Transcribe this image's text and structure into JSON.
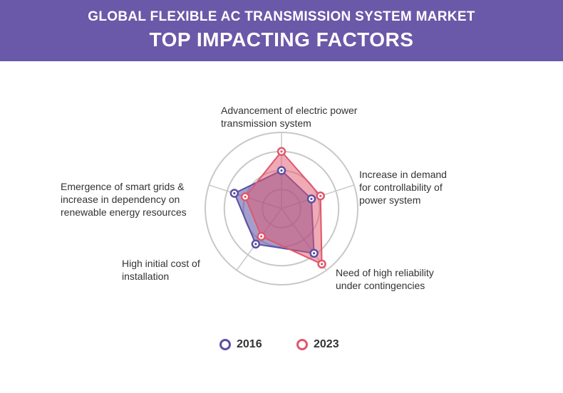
{
  "header": {
    "line1": "GLOBAL FLEXIBLE AC TRANSMISSION SYSTEM MARKET",
    "line2": "TOP IMPACTING FACTORS"
  },
  "colors": {
    "header_bg": "#6a58a8",
    "series_2016": "#5b4fa3",
    "series_2023": "#e0566c"
  },
  "chart_data": {
    "type": "radar",
    "axes": [
      "Advancement of electric power transmission system",
      "Increase in demand for controllability of power system",
      "Need of high reliability under contingencies",
      "High initial cost of installation",
      "Emergence of smart grids & increase in dependency on renewable energy resources"
    ],
    "axis_label_lines": [
      [
        "Advancement of electric power",
        "transmission system"
      ],
      [
        "Increase in demand",
        "for controllability of",
        "power system"
      ],
      [
        "Need of high reliability",
        "under contingencies"
      ],
      [
        "High initial cost of",
        "installation"
      ],
      [
        "Emergence of smart grids &",
        "increase in dependency on",
        "renewable energy resources"
      ]
    ],
    "scale_max": 4,
    "rings": 4,
    "series": [
      {
        "name": "2016",
        "values": [
          2.0,
          1.65,
          2.9,
          2.3,
          2.6
        ]
      },
      {
        "name": "2023",
        "values": [
          3.0,
          2.15,
          3.6,
          1.8,
          2.0
        ]
      }
    ],
    "legend_position": "bottom"
  }
}
